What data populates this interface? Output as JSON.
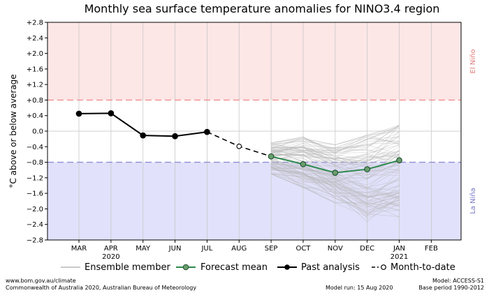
{
  "chart_data": {
    "type": "line",
    "title": "Monthly sea surface temperature anomalies for NINO3.4 region",
    "ylabel": "°C above or below average",
    "ylim": [
      -2.8,
      2.8
    ],
    "y_ticks": [
      "+2.8",
      "+2.4",
      "+2.0",
      "+1.6",
      "+1.2",
      "+0.8",
      "+0.4",
      "0.0",
      "−0.4",
      "−0.8",
      "−1.2",
      "−1.6",
      "−2.0",
      "−2.4",
      "−2.8"
    ],
    "categories": [
      "MAR",
      "APR",
      "MAY",
      "JUN",
      "JUL",
      "AUG",
      "SEP",
      "OCT",
      "NOV",
      "DEC",
      "JAN",
      "FEB"
    ],
    "year_labels": [
      {
        "category": "APR",
        "text": "2020"
      },
      {
        "category": "JAN",
        "text": "2021"
      }
    ],
    "thresholds": {
      "el_nino": 0.8,
      "la_nina": -0.8,
      "el_nino_label": "El Niño",
      "la_nina_label": "La Niña"
    },
    "series": [
      {
        "name": "Past analysis",
        "x": [
          "MAR",
          "APR",
          "MAY",
          "JUN",
          "JUL"
        ],
        "values": [
          0.45,
          0.46,
          -0.11,
          -0.13,
          -0.02
        ]
      },
      {
        "name": "Month-to-date",
        "x": [
          "JUL",
          "AUG",
          "SEP"
        ],
        "values": [
          -0.02,
          -0.39,
          -0.65
        ]
      },
      {
        "name": "Forecast mean",
        "x": [
          "SEP",
          "OCT",
          "NOV",
          "DEC",
          "JAN"
        ],
        "values": [
          -0.65,
          -0.85,
          -1.07,
          -0.98,
          -0.75
        ]
      }
    ],
    "ensemble": {
      "name": "Ensemble member",
      "x": [
        "SEP",
        "OCT",
        "NOV",
        "DEC",
        "JAN"
      ],
      "member_count": 99,
      "min": [
        -1.1,
        -1.45,
        -1.85,
        -2.35,
        -2.2
      ],
      "max": [
        -0.3,
        -0.15,
        -0.35,
        -0.1,
        0.15
      ]
    },
    "legend": {
      "placement": "bottom",
      "entries": [
        "Ensemble member",
        "Forecast mean",
        "Past analysis",
        "Month-to-date"
      ]
    },
    "colors": {
      "el_nino_fill": "#fde6e6",
      "la_nina_fill": "#e1e1fb",
      "el_nino_line": "#ef8f8f",
      "la_nina_line": "#8e8ed6",
      "el_nino_text": "#e07b7b",
      "la_nina_text": "#7777c5",
      "ensemble": "#b8b8b8",
      "forecast_mean": "#2f8a4e",
      "forecast_marker": "#6b9e6d",
      "past": "#000000",
      "month_to_date": "#000000",
      "grid": "#c8c8c8",
      "zero": "#d0d0d0"
    }
  },
  "footer": {
    "left_line1": "www.bom.gov.au/climate",
    "left_line2": "Commonwealth of Australia 2020, Australian Bureau of Meteorology",
    "run_line": "Model run: 15 Aug 2020",
    "model_line1": "Model: ACCESS-S1",
    "model_line2": "Base period 1990-2012"
  }
}
